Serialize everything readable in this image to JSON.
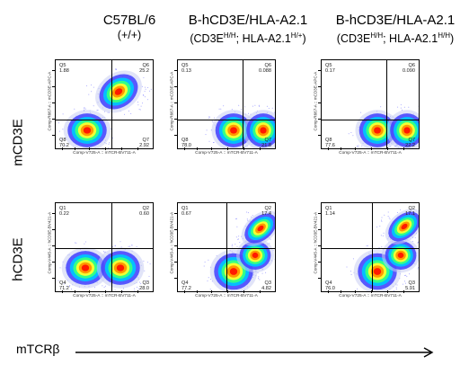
{
  "columns": [
    {
      "title": "C57BL/6",
      "sub": "(+/+)"
    },
    {
      "title": "B-hCD3E/HLA-A2.1",
      "sub_pre": "(CD3E",
      "sub_sup1": "H/H",
      "sub_mid": "; HLA-A2.1",
      "sub_sup2": "H/+",
      "sub_post": ")"
    },
    {
      "title": "B-hCD3E/HLA-A2.1",
      "sub_pre": "(CD3E",
      "sub_sup1": "H/H",
      "sub_mid": "; HLA-A2.1",
      "sub_sup2": "H/H",
      "sub_post": ")"
    }
  ],
  "rows": [
    {
      "label": "mCD3E"
    },
    {
      "label": "hCD3E"
    }
  ],
  "x_axis_label": "mTCRβ",
  "plot_axis": {
    "x_label": "Comp-V725-A :: mTCR-BV711-A",
    "y_label_row1": "Comp-R667-A :: mCD3E-APC-A",
    "y_label_row2": "Comp-V445-A :: hCD3E-BV421-A"
  },
  "panels": [
    {
      "row": 0,
      "col": 0,
      "q": [
        {
          "name": "Q5",
          "val": "1.88"
        },
        {
          "name": "Q6",
          "val": "25.2"
        },
        {
          "name": "Q8",
          "val": "70.2"
        },
        {
          "name": "Q7",
          "val": "2.92"
        }
      ]
    },
    {
      "row": 0,
      "col": 1,
      "q": [
        {
          "name": "Q5",
          "val": "0.13"
        },
        {
          "name": "Q6",
          "val": "0.088"
        },
        {
          "name": "Q8",
          "val": "78.0"
        },
        {
          "name": "Q7",
          "val": "21.8"
        }
      ]
    },
    {
      "row": 0,
      "col": 2,
      "q": [
        {
          "name": "Q5",
          "val": "0.17"
        },
        {
          "name": "Q6",
          "val": "0.090"
        },
        {
          "name": "Q8",
          "val": "77.6"
        },
        {
          "name": "Q7",
          "val": "22.2"
        }
      ]
    },
    {
      "row": 1,
      "col": 0,
      "q": [
        {
          "name": "Q1",
          "val": "0.22"
        },
        {
          "name": "Q2",
          "val": "0.60"
        },
        {
          "name": "Q4",
          "val": "71.2"
        },
        {
          "name": "Q3",
          "val": "28.0"
        }
      ]
    },
    {
      "row": 1,
      "col": 1,
      "q": [
        {
          "name": "Q1",
          "val": "0.67"
        },
        {
          "name": "Q2",
          "val": "17.4"
        },
        {
          "name": "Q4",
          "val": "77.2"
        },
        {
          "name": "Q3",
          "val": "4.82"
        }
      ]
    },
    {
      "row": 1,
      "col": 2,
      "q": [
        {
          "name": "Q1",
          "val": "1.14"
        },
        {
          "name": "Q2",
          "val": "17.1"
        },
        {
          "name": "Q4",
          "val": "76.0"
        },
        {
          "name": "Q3",
          "val": "5.91"
        }
      ]
    }
  ]
}
